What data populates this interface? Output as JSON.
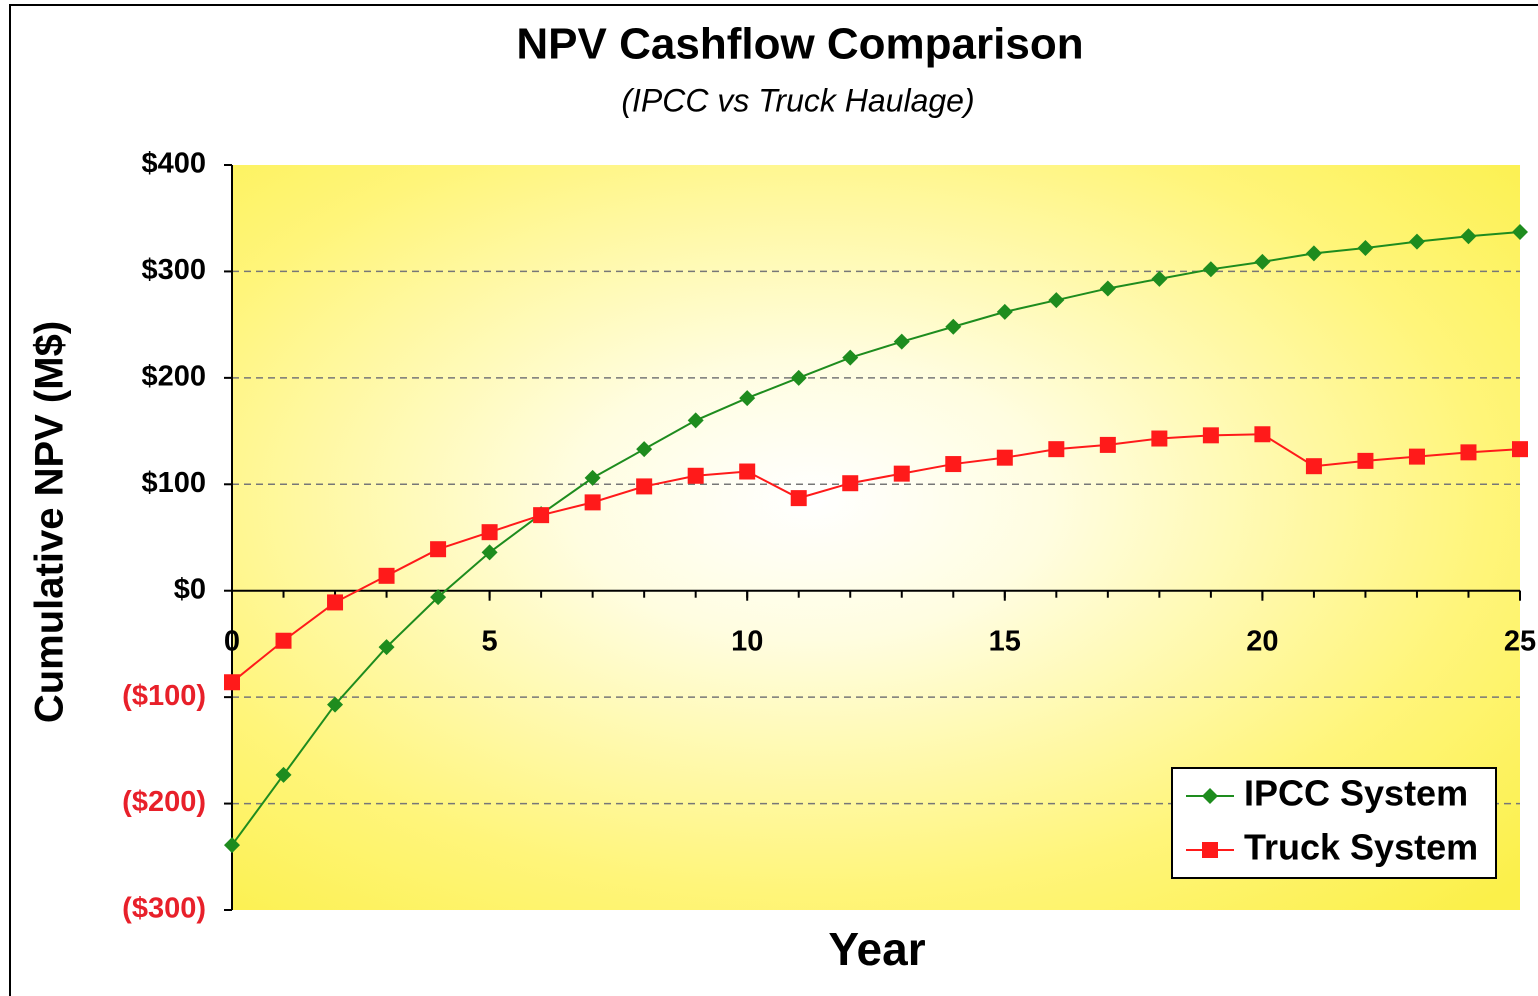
{
  "chart_data": {
    "type": "line",
    "title": "NPV Cashflow Comparison",
    "subtitle": "(IPCC vs Truck Haulage)",
    "x_label": "Year",
    "y_label": "Cumulative NPV (M$)",
    "x": [
      0,
      1,
      2,
      3,
      4,
      5,
      6,
      7,
      8,
      9,
      10,
      11,
      12,
      13,
      14,
      15,
      16,
      17,
      18,
      19,
      20,
      21,
      22,
      23,
      24,
      25
    ],
    "series": [
      {
        "name": "IPCC System",
        "color": "#1e8c1e",
        "marker": "diamond",
        "values": [
          -239,
          -173,
          -107,
          -53,
          -6,
          36,
          72,
          106,
          133,
          160,
          181,
          200,
          219,
          234,
          248,
          262,
          273,
          284,
          293,
          302,
          309,
          317,
          322,
          328,
          333,
          337
        ]
      },
      {
        "name": "Truck System",
        "color": "#ff1a1a",
        "marker": "square",
        "values": [
          -86,
          -47,
          -11,
          14,
          39,
          55,
          71,
          83,
          98,
          108,
          112,
          87,
          101,
          110,
          119,
          125,
          133,
          137,
          143,
          146,
          147,
          117,
          122,
          126,
          130,
          133
        ]
      }
    ],
    "xlim": [
      0,
      25
    ],
    "xticks": [
      0,
      5,
      10,
      15,
      20,
      25
    ],
    "ylim": [
      -300,
      400
    ],
    "yticks": [
      {
        "value": -300,
        "label": "($300)"
      },
      {
        "value": -200,
        "label": "($200)"
      },
      {
        "value": -100,
        "label": "($100)"
      },
      {
        "value": 0,
        "label": "$0"
      },
      {
        "value": 100,
        "label": "$100"
      },
      {
        "value": 200,
        "label": "$200"
      },
      {
        "value": 300,
        "label": "$300"
      },
      {
        "value": 400,
        "label": "$400"
      }
    ],
    "grid": true,
    "legend": "lower right"
  }
}
